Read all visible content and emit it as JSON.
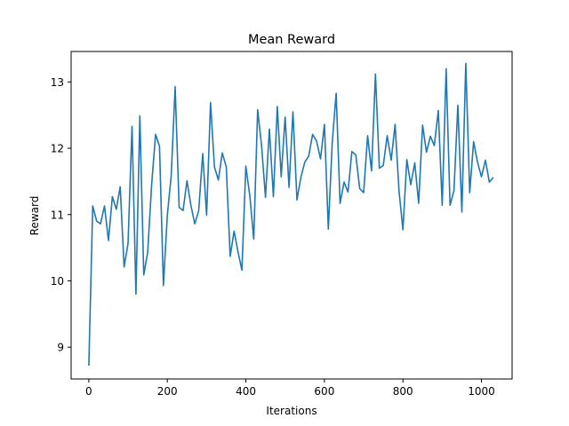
{
  "chart_data": {
    "type": "line",
    "title": "Mean Reward",
    "xlabel": "Iterations",
    "ylabel": "Reward",
    "xlim": [
      -45,
      1078
    ],
    "ylim": [
      8.52,
      13.46
    ],
    "xticks": [
      0,
      200,
      400,
      600,
      800,
      1000
    ],
    "yticks": [
      9,
      10,
      11,
      12,
      13
    ],
    "grid": false,
    "line_color": "#1f77b4",
    "series": [
      {
        "x": [
          0,
          10,
          20,
          30,
          40,
          50,
          60,
          70,
          80,
          90,
          100,
          110,
          120,
          130,
          140,
          150,
          160,
          170,
          180,
          190,
          200,
          210,
          220,
          230,
          240,
          250,
          260,
          270,
          280,
          290,
          300,
          310,
          320,
          330,
          340,
          350,
          360,
          370,
          380,
          390,
          400,
          410,
          420,
          430,
          440,
          450,
          460,
          470,
          480,
          490,
          500,
          510,
          520,
          530,
          540,
          550,
          560,
          570,
          580,
          590,
          600,
          610,
          620,
          630,
          640,
          650,
          660,
          670,
          680,
          690,
          700,
          710,
          720,
          730,
          740,
          750,
          760,
          770,
          780,
          790,
          800,
          810,
          820,
          830,
          840,
          850,
          860,
          870,
          880,
          890,
          900,
          910,
          920,
          930,
          940,
          950,
          960,
          970,
          980,
          990,
          1000,
          1010,
          1020,
          1030
        ],
        "y": [
          8.72,
          11.13,
          10.9,
          10.86,
          11.13,
          10.61,
          11.27,
          11.08,
          11.42,
          10.21,
          10.56,
          12.33,
          9.8,
          12.49,
          10.09,
          10.43,
          11.44,
          12.21,
          12.03,
          9.93,
          10.99,
          11.59,
          12.93,
          11.11,
          11.06,
          11.51,
          11.14,
          10.86,
          11.06,
          11.92,
          10.99,
          12.69,
          11.72,
          11.52,
          11.93,
          11.72,
          10.37,
          10.75,
          10.44,
          10.16,
          11.73,
          11.28,
          10.63,
          12.58,
          12.04,
          11.26,
          12.29,
          11.27,
          12.63,
          11.57,
          12.47,
          11.41,
          12.55,
          11.22,
          11.56,
          11.79,
          11.88,
          12.21,
          12.11,
          11.84,
          12.36,
          10.78,
          12.09,
          12.83,
          11.17,
          11.49,
          11.34,
          11.95,
          11.9,
          11.39,
          11.33,
          12.19,
          11.66,
          13.12,
          11.7,
          11.74,
          12.19,
          11.82,
          12.36,
          11.36,
          10.77,
          11.83,
          11.45,
          11.78,
          11.17,
          12.35,
          11.94,
          12.18,
          12.04,
          12.57,
          11.14,
          13.2,
          11.14,
          11.36,
          12.65,
          11.04,
          13.28,
          11.33,
          12.1,
          11.79,
          11.57,
          11.82,
          11.49,
          11.56
        ]
      }
    ]
  }
}
